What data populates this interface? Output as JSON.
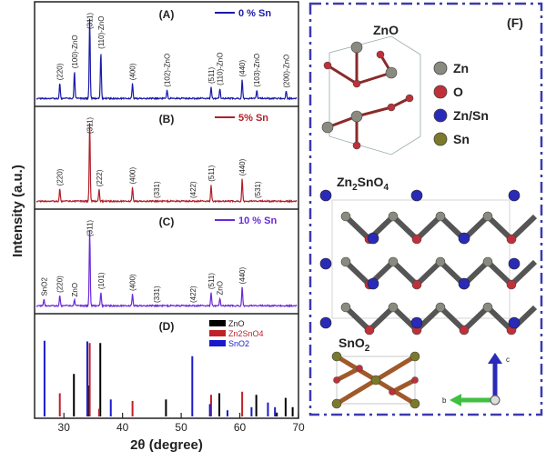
{
  "chart_data": {
    "type": "line",
    "xlabel": "2θ (degree)",
    "ylabel": "Intensity (a.u.)",
    "xlim": [
      25,
      70
    ],
    "xticks": [
      "30",
      "40",
      "50",
      "60",
      "70"
    ],
    "xtick_values": [
      30,
      40,
      50,
      60,
      70
    ],
    "panels": [
      {
        "id": "A",
        "label": "(A)",
        "legend": "0 % Sn",
        "color": "#1a1aa8",
        "peaks": [
          {
            "x": 29.3,
            "h": 0.18,
            "label": "(220)"
          },
          {
            "x": 31.8,
            "h": 0.32,
            "label": "(100)-ZnO"
          },
          {
            "x": 34.4,
            "h": 0.95,
            "label": "(311)"
          },
          {
            "x": 36.3,
            "h": 0.55,
            "label": "(110)-ZnO"
          },
          {
            "x": 41.7,
            "h": 0.18,
            "label": "(400)"
          },
          {
            "x": 47.6,
            "h": 0.1,
            "label": "(102)-ZnO"
          },
          {
            "x": 55.1,
            "h": 0.14,
            "label": "(511)"
          },
          {
            "x": 56.6,
            "h": 0.12,
            "label": "(110)-ZnO"
          },
          {
            "x": 60.4,
            "h": 0.22,
            "label": "(440)"
          },
          {
            "x": 62.9,
            "h": 0.1,
            "label": "(103)-ZnO"
          },
          {
            "x": 67.9,
            "h": 0.09,
            "label": "(200)-ZnO"
          }
        ]
      },
      {
        "id": "B",
        "label": "(B)",
        "legend": "5% Sn",
        "color": "#b0202a",
        "peaks": [
          {
            "x": 29.3,
            "h": 0.15,
            "label": "(220)"
          },
          {
            "x": 34.4,
            "h": 0.95,
            "label": "(311)"
          },
          {
            "x": 36.0,
            "h": 0.14,
            "label": "(222)"
          },
          {
            "x": 41.7,
            "h": 0.17,
            "label": "(400)"
          },
          {
            "x": 45.8,
            "h": 0.0,
            "label": "(331)"
          },
          {
            "x": 52.0,
            "h": 0.0,
            "label": "(422)"
          },
          {
            "x": 55.1,
            "h": 0.2,
            "label": "(511)"
          },
          {
            "x": 60.4,
            "h": 0.27,
            "label": "(440)"
          },
          {
            "x": 63.0,
            "h": 0.0,
            "label": "(531)"
          }
        ]
      },
      {
        "id": "C",
        "label": "(C)",
        "legend": "10 % Sn",
        "color": "#6a2ad8",
        "peaks": [
          {
            "x": 26.6,
            "h": 0.08,
            "label": "SnO2"
          },
          {
            "x": 29.3,
            "h": 0.12,
            "label": "(220)"
          },
          {
            "x": 31.8,
            "h": 0.07,
            "label": "ZnO"
          },
          {
            "x": 34.4,
            "h": 0.9,
            "label": "(311)"
          },
          {
            "x": 36.3,
            "h": 0.16,
            "label": "(101)"
          },
          {
            "x": 41.7,
            "h": 0.14,
            "label": "(400)"
          },
          {
            "x": 45.8,
            "h": 0.0,
            "label": "(331)"
          },
          {
            "x": 52.0,
            "h": 0.0,
            "label": "(422)"
          },
          {
            "x": 55.1,
            "h": 0.16,
            "label": "(511)"
          },
          {
            "x": 56.6,
            "h": 0.09,
            "label": "ZnO"
          },
          {
            "x": 60.4,
            "h": 0.22,
            "label": "(440)"
          }
        ]
      },
      {
        "id": "D",
        "label": "(D)",
        "type": "reference-sticks",
        "series": [
          {
            "name": "ZnO",
            "color": "#000000",
            "x": [
              31.8,
              34.4,
              36.3,
              47.5,
              56.6,
              62.9,
              66.4,
              67.9,
              69.1
            ],
            "values": [
              0.55,
              0.4,
              0.95,
              0.22,
              0.3,
              0.28,
              0.05,
              0.24,
              0.12
            ]
          },
          {
            "name": "Zn2SnO4",
            "color": "#c0202a",
            "x": [
              29.3,
              34.4,
              36.0,
              41.7,
              55.1,
              60.4
            ],
            "values": [
              0.3,
              0.95,
              0.1,
              0.2,
              0.28,
              0.32
            ]
          },
          {
            "name": "SnO2",
            "color": "#1a1acc",
            "x": [
              26.6,
              33.9,
              37.9,
              51.8,
              54.8,
              57.8,
              61.9,
              64.7,
              65.9
            ],
            "values": [
              0.98,
              0.97,
              0.22,
              0.78,
              0.16,
              0.08,
              0.12,
              0.18,
              0.12
            ]
          }
        ]
      }
    ]
  },
  "structures": {
    "panel_label": "(F)",
    "items": [
      {
        "id": "zno",
        "label": "ZnO"
      },
      {
        "id": "zn2sno4",
        "label": "Zn2SnO4",
        "label_main": "Zn",
        "label_sub1": "2",
        "label_mid": "SnO",
        "label_sub2": "4"
      },
      {
        "id": "sno2",
        "label": "SnO2",
        "label_main": "SnO",
        "label_sub": "2"
      }
    ],
    "legend": [
      {
        "label": "Zn",
        "color": "#8a8a80"
      },
      {
        "label": "O",
        "color": "#c0303a"
      },
      {
        "label": "Zn/Sn",
        "color": "#2a2ab8"
      },
      {
        "label": "Sn",
        "color": "#7a7a2a"
      }
    ],
    "axes_labels": {
      "c": "c",
      "b": "b"
    }
  }
}
